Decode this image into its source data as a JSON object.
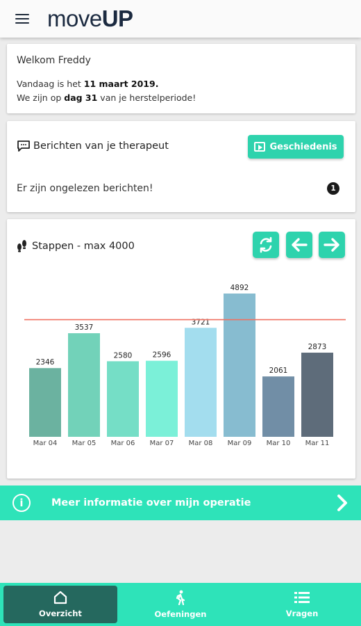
{
  "header": {
    "logo_regular": "move",
    "logo_bold": "UP",
    "menu_icon": "hamburger-icon"
  },
  "welcome": {
    "greeting": "Welkom Freddy",
    "date_prefix": "Vandaag is het ",
    "date_value": "11 maart 2019.",
    "day_prefix": "We zijn op ",
    "day_value": "dag 31",
    "day_suffix": " van je herstelperiode!"
  },
  "messages": {
    "icon": "chat-icon",
    "title": "Berichten van je therapeut",
    "history_button": "Geschiedenis",
    "unread_text": "Er zijn ongelezen berichten!",
    "unread_count": "1"
  },
  "steps": {
    "icon": "footsteps-icon",
    "title": "Stappen - max 4000",
    "buttons": [
      "refresh-icon",
      "arrow-left-icon",
      "arrow-right-icon"
    ]
  },
  "chart_data": {
    "type": "bar",
    "categories": [
      "Mar 04",
      "Mar 05",
      "Mar 06",
      "Mar 07",
      "Mar 08",
      "Mar 09",
      "Mar 10",
      "Mar 11"
    ],
    "values": [
      2346,
      3537,
      2580,
      2596,
      3721,
      4892,
      2061,
      2873
    ],
    "bar_colors": [
      "#6bb2a0",
      "#72d2b9",
      "#75dec6",
      "#7bf0d8",
      "#a3ddee",
      "#87bcd0",
      "#718ea6",
      "#5e6c7a"
    ],
    "reference_line": 4000,
    "reference_color": "#f07060",
    "ylim": [
      0,
      4892
    ],
    "title": "",
    "xlabel": "",
    "ylabel": ""
  },
  "info_bar": {
    "text": "Meer informatie over mijn operatie",
    "icon": "info-icon",
    "chevron": "chevron-right-icon"
  },
  "nav": {
    "items": [
      {
        "label": "Overzicht",
        "icon": "home-icon"
      },
      {
        "label": "Oefeningen",
        "icon": "walking-icon"
      },
      {
        "label": "Vragen",
        "icon": "list-icon"
      }
    ]
  }
}
